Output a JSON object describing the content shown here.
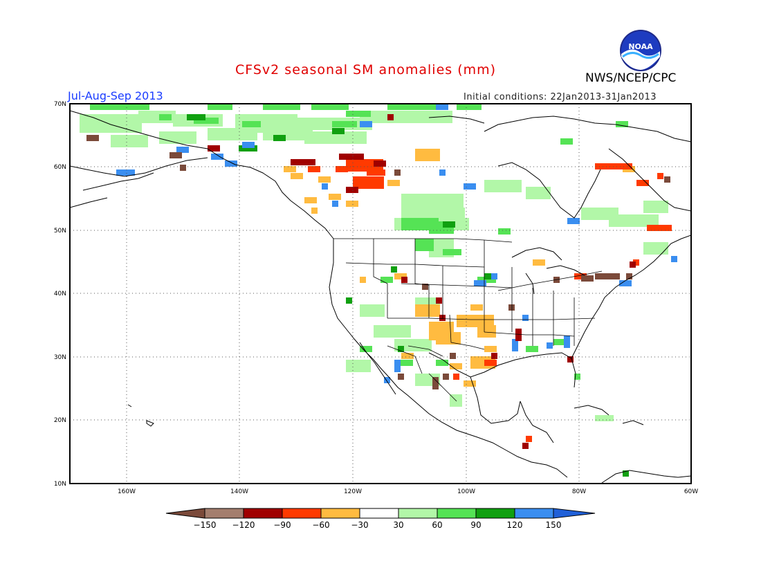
{
  "header": {
    "title": "CFSv2 seasonal SM anomalies (mm)",
    "agency": "NWS/NCEP/CPC",
    "season": "Jul-Aug-Sep 2013",
    "initial_conditions": "Initial conditions: 22Jan2013-31Jan2013",
    "logo_text": "NOAA"
  },
  "axes": {
    "lat_labels": [
      "70N",
      "60N",
      "50N",
      "40N",
      "30N",
      "20N",
      "10N"
    ],
    "lon_labels": [
      "160W",
      "140W",
      "120W",
      "100W",
      "80W",
      "60W"
    ]
  },
  "colorbar": {
    "labels": [
      "-150",
      "-120",
      "-90",
      "-60",
      "-30",
      "30",
      "60",
      "90",
      "120",
      "150"
    ],
    "colors": [
      "#7b4a3a",
      "#a47e6e",
      "#a00000",
      "#ff3a00",
      "#ffbb40",
      "#ffffff",
      "#b2f7a8",
      "#55e355",
      "#10a010",
      "#3a8ef0",
      "#2060d8"
    ]
  },
  "anomaly_colors": {
    "dry_extreme": "#7b4a3a",
    "dry_very": "#a00000",
    "dry_strong": "#ff3a00",
    "dry_moderate": "#ffbb40",
    "wet_light": "#b2f7a8",
    "wet_moderate": "#55e355",
    "wet_strong": "#10a010",
    "wet_extreme": "#3a8ef0"
  }
}
